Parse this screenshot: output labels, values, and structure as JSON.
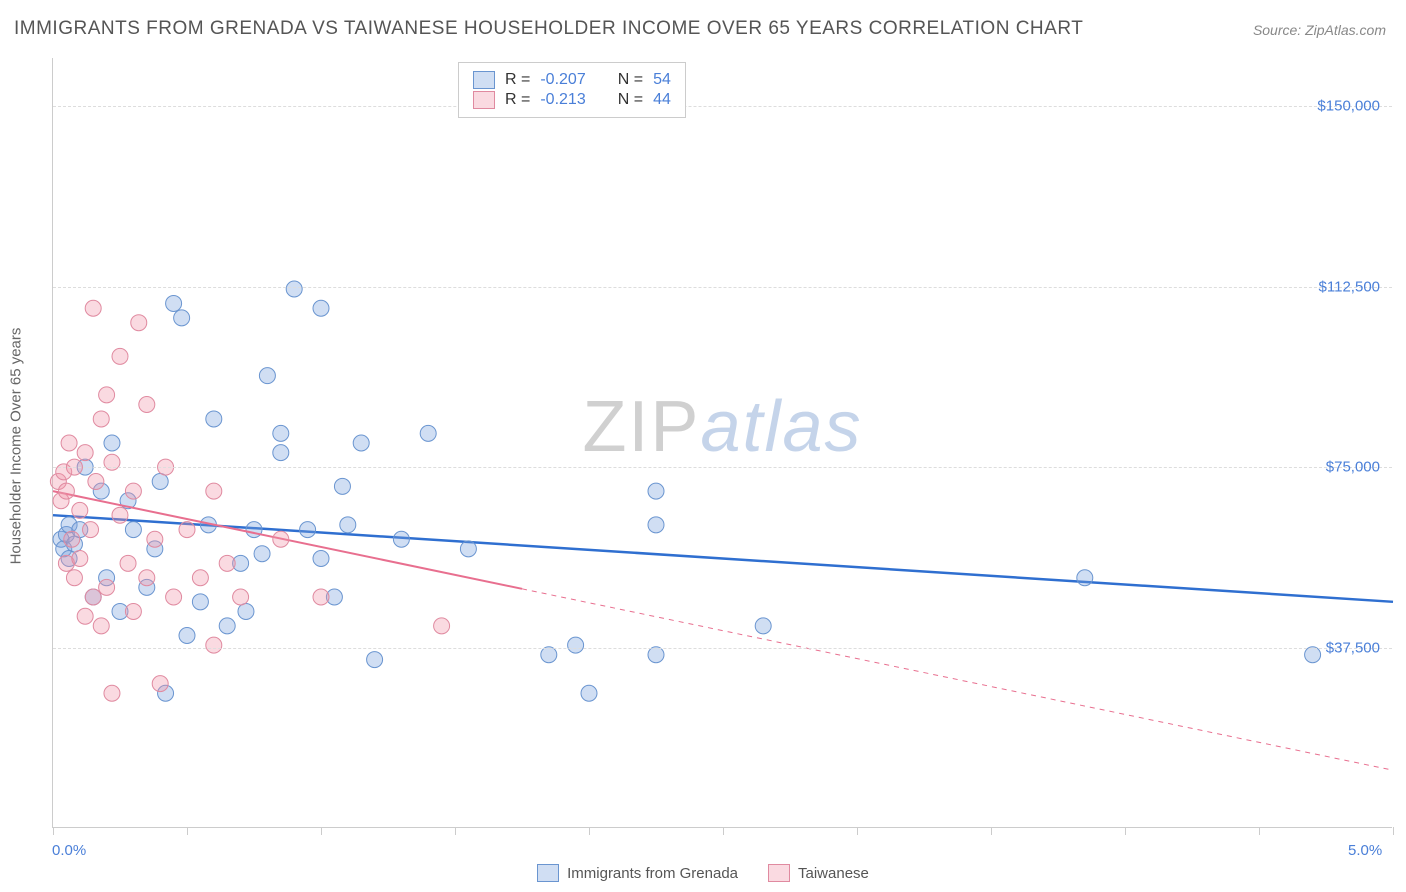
{
  "title": "IMMIGRANTS FROM GRENADA VS TAIWANESE HOUSEHOLDER INCOME OVER 65 YEARS CORRELATION CHART",
  "source": "Source: ZipAtlas.com",
  "y_axis_title": "Householder Income Over 65 years",
  "watermark": {
    "part1": "ZIP",
    "part2": "atlas"
  },
  "chart": {
    "type": "scatter",
    "xlim": [
      0,
      5
    ],
    "ylim": [
      0,
      160000
    ],
    "x_tick_positions": [
      0,
      0.5,
      1.0,
      1.5,
      2.0,
      2.5,
      3.0,
      3.5,
      4.0,
      4.5,
      5.0
    ],
    "x_tick_labels_shown": {
      "0": "0.0%",
      "5": "5.0%"
    },
    "y_gridlines": [
      37500,
      75000,
      112500,
      150000
    ],
    "y_tick_labels": [
      "$37,500",
      "$75,000",
      "$112,500",
      "$150,000"
    ],
    "background_color": "#ffffff",
    "grid_color": "#dddddd",
    "axis_color": "#cccccc",
    "tick_label_color": "#4a7fd8",
    "axis_title_color": "#666666"
  },
  "series": [
    {
      "name": "Immigrants from Grenada",
      "color_fill": "rgba(120,160,220,0.35)",
      "color_stroke": "#6a95d0",
      "marker_radius": 8,
      "R": "-0.207",
      "N": "54",
      "trend": {
        "x1": 0,
        "y1": 65000,
        "x2": 5.0,
        "y2": 47000,
        "solid_until_x": 5.0,
        "color": "#2f6fd0",
        "width": 2.5
      },
      "points": [
        [
          0.03,
          60000
        ],
        [
          0.04,
          58000
        ],
        [
          0.05,
          61000
        ],
        [
          0.06,
          56000
        ],
        [
          0.06,
          63000
        ],
        [
          0.08,
          59000
        ],
        [
          0.1,
          62000
        ],
        [
          0.12,
          75000
        ],
        [
          0.15,
          48000
        ],
        [
          0.18,
          70000
        ],
        [
          0.2,
          52000
        ],
        [
          0.22,
          80000
        ],
        [
          0.25,
          45000
        ],
        [
          0.28,
          68000
        ],
        [
          0.3,
          62000
        ],
        [
          0.35,
          50000
        ],
        [
          0.38,
          58000
        ],
        [
          0.4,
          72000
        ],
        [
          0.42,
          28000
        ],
        [
          0.45,
          109000
        ],
        [
          0.48,
          106000
        ],
        [
          0.5,
          40000
        ],
        [
          0.55,
          47000
        ],
        [
          0.58,
          63000
        ],
        [
          0.6,
          85000
        ],
        [
          0.65,
          42000
        ],
        [
          0.7,
          55000
        ],
        [
          0.72,
          45000
        ],
        [
          0.75,
          62000
        ],
        [
          0.78,
          57000
        ],
        [
          0.8,
          94000
        ],
        [
          0.85,
          78000
        ],
        [
          0.85,
          82000
        ],
        [
          0.9,
          112000
        ],
        [
          0.95,
          62000
        ],
        [
          1.0,
          108000
        ],
        [
          1.0,
          56000
        ],
        [
          1.05,
          48000
        ],
        [
          1.08,
          71000
        ],
        [
          1.1,
          63000
        ],
        [
          1.15,
          80000
        ],
        [
          1.2,
          35000
        ],
        [
          1.3,
          60000
        ],
        [
          1.4,
          82000
        ],
        [
          1.55,
          58000
        ],
        [
          1.85,
          36000
        ],
        [
          1.95,
          38000
        ],
        [
          2.0,
          28000
        ],
        [
          2.25,
          63000
        ],
        [
          2.25,
          70000
        ],
        [
          2.65,
          42000
        ],
        [
          3.85,
          52000
        ],
        [
          4.7,
          36000
        ],
        [
          2.25,
          36000
        ]
      ]
    },
    {
      "name": "Taiwanese",
      "color_fill": "rgba(240,150,170,0.35)",
      "color_stroke": "#e08aa0",
      "marker_radius": 8,
      "R": "-0.213",
      "N": "44",
      "trend": {
        "x1": 0,
        "y1": 70000,
        "x2": 5.0,
        "y2": 12000,
        "solid_until_x": 1.75,
        "color": "#e86f8f",
        "width": 2
      },
      "points": [
        [
          0.02,
          72000
        ],
        [
          0.03,
          68000
        ],
        [
          0.04,
          74000
        ],
        [
          0.05,
          55000
        ],
        [
          0.05,
          70000
        ],
        [
          0.06,
          80000
        ],
        [
          0.07,
          60000
        ],
        [
          0.08,
          52000
        ],
        [
          0.08,
          75000
        ],
        [
          0.1,
          66000
        ],
        [
          0.1,
          56000
        ],
        [
          0.12,
          44000
        ],
        [
          0.12,
          78000
        ],
        [
          0.14,
          62000
        ],
        [
          0.15,
          108000
        ],
        [
          0.15,
          48000
        ],
        [
          0.16,
          72000
        ],
        [
          0.18,
          85000
        ],
        [
          0.18,
          42000
        ],
        [
          0.2,
          90000
        ],
        [
          0.2,
          50000
        ],
        [
          0.22,
          76000
        ],
        [
          0.22,
          28000
        ],
        [
          0.25,
          65000
        ],
        [
          0.25,
          98000
        ],
        [
          0.28,
          55000
        ],
        [
          0.3,
          45000
        ],
        [
          0.3,
          70000
        ],
        [
          0.32,
          105000
        ],
        [
          0.35,
          88000
        ],
        [
          0.35,
          52000
        ],
        [
          0.38,
          60000
        ],
        [
          0.4,
          30000
        ],
        [
          0.42,
          75000
        ],
        [
          0.45,
          48000
        ],
        [
          0.5,
          62000
        ],
        [
          0.55,
          52000
        ],
        [
          0.6,
          38000
        ],
        [
          0.6,
          70000
        ],
        [
          0.65,
          55000
        ],
        [
          0.7,
          48000
        ],
        [
          0.85,
          60000
        ],
        [
          1.0,
          48000
        ],
        [
          1.45,
          42000
        ]
      ]
    }
  ],
  "legend_top": {
    "rows": [
      {
        "swatch_fill": "rgba(120,160,220,0.35)",
        "swatch_stroke": "#6a95d0",
        "r_label": "R =",
        "r_val": "-0.207",
        "n_label": "N =",
        "n_val": "54"
      },
      {
        "swatch_fill": "rgba(240,150,170,0.35)",
        "swatch_stroke": "#e08aa0",
        "r_label": "R =",
        "r_val": "-0.213",
        "n_label": "N =",
        "n_val": "44"
      }
    ]
  },
  "legend_bottom": {
    "items": [
      {
        "swatch_fill": "rgba(120,160,220,0.35)",
        "swatch_stroke": "#6a95d0",
        "label": "Immigrants from Grenada"
      },
      {
        "swatch_fill": "rgba(240,150,170,0.35)",
        "swatch_stroke": "#e08aa0",
        "label": "Taiwanese"
      }
    ]
  }
}
